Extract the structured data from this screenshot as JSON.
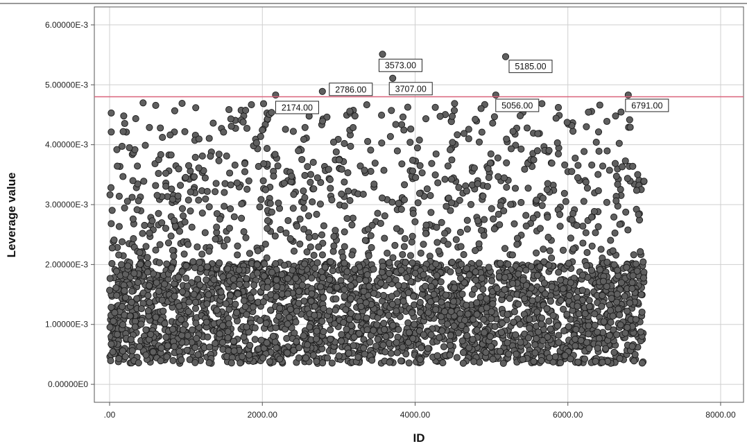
{
  "chart_data": {
    "type": "scatter",
    "title": "",
    "xlabel": "ID",
    "ylabel": "Leverage value",
    "xlim": [
      -200,
      8300
    ],
    "ylim": [
      -0.0003,
      0.0063
    ],
    "x_ticks": [
      0,
      2000,
      4000,
      6000,
      8000
    ],
    "x_tick_labels": [
      ".00",
      "2000.00",
      "4000.00",
      "6000.00",
      "8000.00"
    ],
    "y_ticks": [
      0,
      0.001,
      0.002,
      0.003,
      0.004,
      0.005,
      0.006
    ],
    "y_tick_labels": [
      "0.00000E0",
      "1.00000E-3",
      "2.00000E-3",
      "3.00000E-3",
      "4.00000E-3",
      "5.00000E-3",
      "6.00000E-3"
    ],
    "grid": true,
    "reference_line": {
      "y": 0.0048,
      "color": "#d9627a"
    },
    "point_color": "#5f5f5f",
    "point_edge_color": "#1a1a1a",
    "n_points_approx": 3500,
    "x_range": [
      0,
      7000
    ],
    "y_range": [
      0.00035,
      0.0055
    ],
    "density_note": "dense below 2.00000E-3, sparser above",
    "labeled_points": [
      {
        "x": 2174,
        "y": 0.00483,
        "label": "2174.00"
      },
      {
        "x": 2786,
        "y": 0.00489,
        "label": "2786.00"
      },
      {
        "x": 3573,
        "y": 0.00551,
        "label": "3573.00"
      },
      {
        "x": 3707,
        "y": 0.00511,
        "label": "3707.00"
      },
      {
        "x": 5056,
        "y": 0.00483,
        "label": "5056.00"
      },
      {
        "x": 5185,
        "y": 0.00547,
        "label": "5185.00"
      },
      {
        "x": 6791,
        "y": 0.00483,
        "label": "6791.00"
      }
    ]
  }
}
